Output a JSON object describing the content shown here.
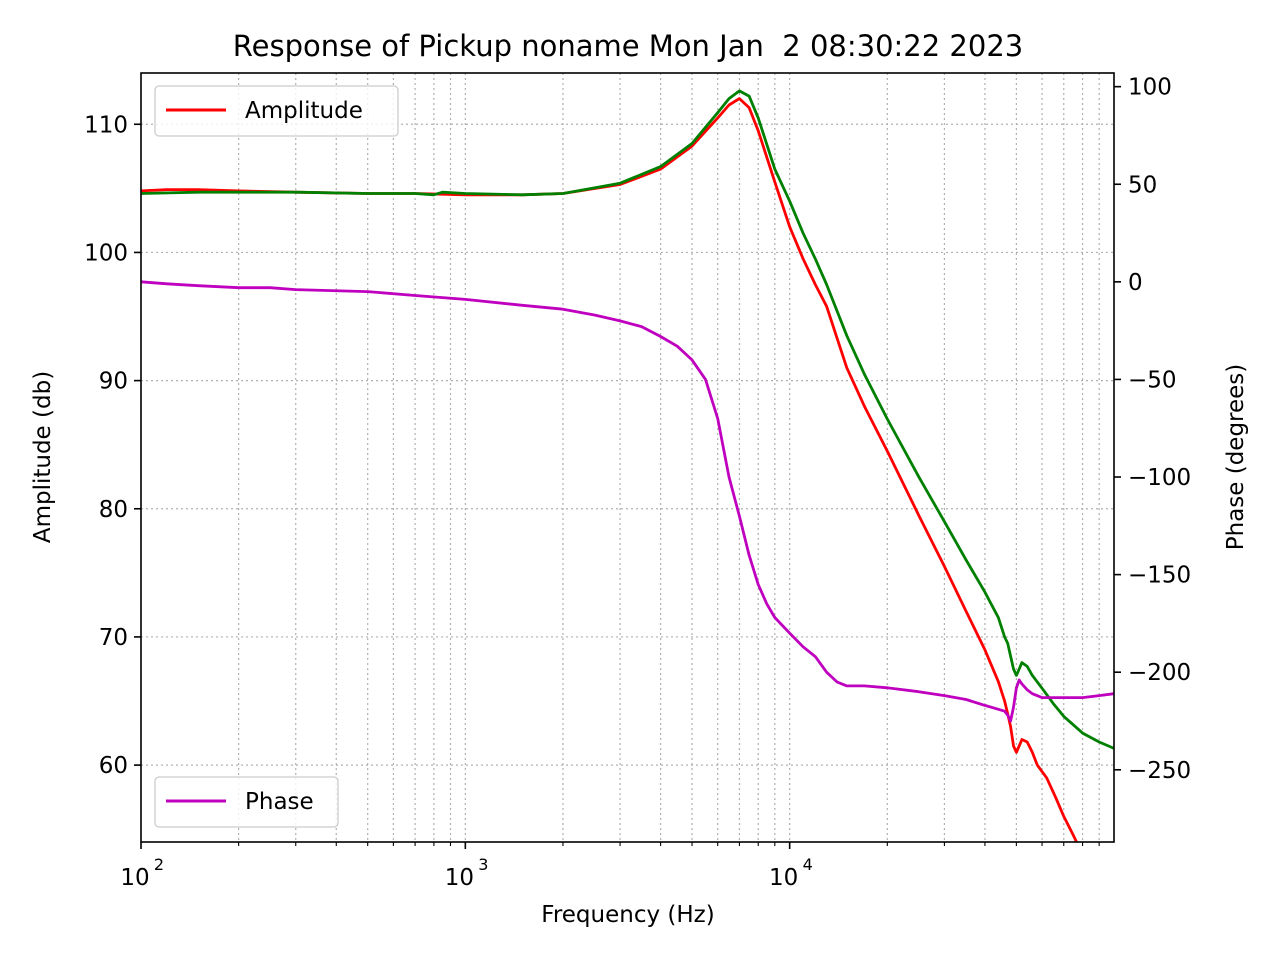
{
  "chart_data": {
    "type": "line",
    "title": "Response of Pickup noname Mon Jan  2 08:30:22 2023",
    "xlabel": "Frequency (Hz)",
    "ylabel": "Amplitude (db)",
    "y2label": "Phase (degrees)",
    "xscale": "log",
    "xlim": [
      100,
      100000
    ],
    "ylim": [
      54,
      114
    ],
    "y2lim": [
      -287,
      107
    ],
    "grid": true,
    "x_ticks": [
      {
        "base": "10",
        "exp": "2",
        "value": 100
      },
      {
        "base": "10",
        "exp": "3",
        "value": 1000
      },
      {
        "base": "10",
        "exp": "4",
        "value": 10000
      }
    ],
    "y_ticks": [
      "60",
      "70",
      "80",
      "90",
      "100",
      "110"
    ],
    "y2_ticks": [
      "−250",
      "−200",
      "−150",
      "−100",
      "−50",
      "0",
      "50",
      "100"
    ],
    "legend_top": {
      "position": "upper left",
      "entries": [
        "Amplitude"
      ]
    },
    "legend_bottom": {
      "position": "lower left",
      "entries": [
        "Phase"
      ]
    },
    "series": [
      {
        "name": "Amplitude",
        "color": "#ff0000",
        "axis": "left",
        "x": [
          100,
          120,
          150,
          200,
          300,
          500,
          700,
          1000,
          1500,
          2000,
          3000,
          4000,
          5000,
          6000,
          6500,
          7000,
          7500,
          8000,
          9000,
          10000,
          11000,
          12000,
          13000,
          15000,
          17000,
          20000,
          25000,
          30000,
          35000,
          40000,
          44000,
          46000,
          47000,
          48000,
          49000,
          50000,
          51000,
          52000,
          54000,
          56000,
          58000,
          62000,
          66000,
          70000,
          75000,
          80000,
          85000
        ],
        "y": [
          104.8,
          104.9,
          104.9,
          104.8,
          104.7,
          104.6,
          104.6,
          104.5,
          104.5,
          104.6,
          105.3,
          106.5,
          108.3,
          110.5,
          111.5,
          112.0,
          111.3,
          109.5,
          105.5,
          102.0,
          99.5,
          97.5,
          95.8,
          91.0,
          88.0,
          84.5,
          79.5,
          75.5,
          72.0,
          69.0,
          66.5,
          65.0,
          64.0,
          63.0,
          61.5,
          61.0,
          61.5,
          62.0,
          61.8,
          61.0,
          60.0,
          59.0,
          57.5,
          56.0,
          54.5,
          53.0,
          51.5
        ]
      },
      {
        "name": "",
        "color": "#008000",
        "axis": "left",
        "x": [
          100,
          150,
          200,
          300,
          500,
          700,
          800,
          850,
          1000,
          1500,
          2000,
          3000,
          4000,
          5000,
          6000,
          6500,
          7000,
          7500,
          8000,
          9000,
          10000,
          11000,
          12000,
          13000,
          15000,
          17000,
          20000,
          25000,
          30000,
          35000,
          40000,
          44000,
          46000,
          47000,
          48000,
          49000,
          50000,
          51000,
          52000,
          54000,
          56000,
          60000,
          65000,
          70000,
          80000,
          90000,
          100000
        ],
        "y": [
          104.6,
          104.7,
          104.7,
          104.7,
          104.6,
          104.6,
          104.5,
          104.7,
          104.6,
          104.5,
          104.6,
          105.4,
          106.7,
          108.5,
          110.9,
          112.0,
          112.6,
          112.2,
          110.5,
          106.5,
          104.0,
          101.5,
          99.5,
          97.5,
          93.5,
          90.5,
          87.0,
          82.5,
          79.0,
          76.0,
          73.5,
          71.5,
          70.0,
          69.5,
          68.5,
          67.5,
          67.0,
          67.5,
          68.0,
          67.7,
          67.0,
          66.0,
          64.8,
          63.8,
          62.5,
          61.8,
          61.3
        ]
      },
      {
        "name": "Phase",
        "color": "#bf00bf",
        "axis": "right",
        "x": [
          100,
          120,
          150,
          200,
          250,
          300,
          500,
          700,
          1000,
          1500,
          2000,
          2500,
          3000,
          3500,
          4000,
          4500,
          5000,
          5500,
          6000,
          6500,
          7000,
          7500,
          8000,
          8500,
          9000,
          10000,
          11000,
          12000,
          13000,
          14000,
          15000,
          17000,
          20000,
          25000,
          30000,
          35000,
          40000,
          44000,
          46000,
          47000,
          48000,
          49000,
          50000,
          51000,
          52000,
          54000,
          56000,
          60000,
          65000,
          70000,
          80000,
          90000,
          100000
        ],
        "y": [
          0,
          -1,
          -2,
          -3,
          -3,
          -4,
          -5,
          -7,
          -9,
          -12,
          -14,
          -17,
          -20,
          -23,
          -28,
          -33,
          -40,
          -50,
          -70,
          -100,
          -120,
          -140,
          -155,
          -165,
          -172,
          -180,
          -187,
          -192,
          -200,
          -205,
          -207,
          -207,
          -208,
          -210,
          -212,
          -214,
          -217,
          -219,
          -220,
          -222,
          -225,
          -218,
          -208,
          -204,
          -206,
          -209,
          -211,
          -213,
          -213,
          -213,
          -213,
          -212,
          -211
        ]
      }
    ]
  }
}
